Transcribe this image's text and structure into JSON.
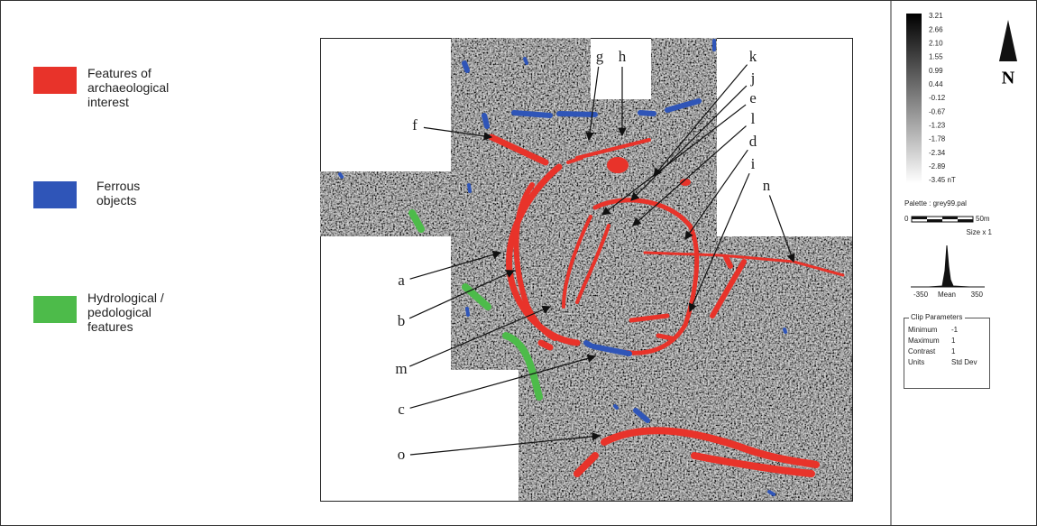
{
  "legend": [
    {
      "label": "Features of archaeological interest",
      "color": "#e8332a"
    },
    {
      "label": "Ferrous objects",
      "color": "#2f55b8"
    },
    {
      "label": "Hydrological / pedological features",
      "color": "#4dbb4a"
    }
  ],
  "feature_labels": [
    "f",
    "g",
    "h",
    "k",
    "j",
    "e",
    "l",
    "d",
    "i",
    "n",
    "a",
    "b",
    "m",
    "c",
    "o"
  ],
  "colorbar": {
    "ticks": [
      "3.21",
      "2.66",
      "2.10",
      "1.55",
      "0.99",
      "0.44",
      "-0.12",
      "-0.67",
      "-1.23",
      "-1.78",
      "-2.34",
      "-2.89",
      "-3.45 nT"
    ]
  },
  "north": "N",
  "palette": "Palette : grey99.pal",
  "scale": {
    "start": "0",
    "end": "50m",
    "size": "Size x 1"
  },
  "histogram": {
    "min": "-350",
    "mean": "Mean",
    "max": "350"
  },
  "clip": {
    "title": "Clip Parameters",
    "rows": [
      [
        "Minimum",
        "-1"
      ],
      [
        "Maximum",
        "1"
      ],
      [
        "Contrast",
        "1"
      ],
      [
        "Units",
        "Std Dev"
      ]
    ]
  }
}
